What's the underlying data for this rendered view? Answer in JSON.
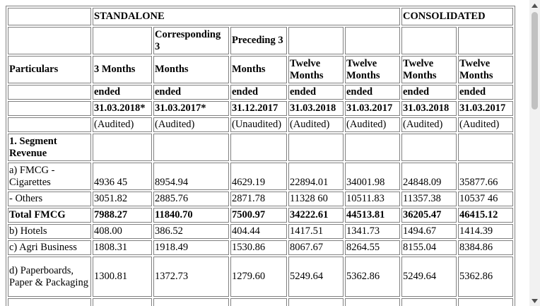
{
  "groups": {
    "standalone": "STANDALONE",
    "consolidated": "CONSOLIDATED"
  },
  "header": {
    "particulars": "Particulars",
    "row2": [
      "",
      "Corresponding 3",
      "Preceding 3",
      "",
      "",
      "",
      ""
    ],
    "row3": [
      "3 Months",
      "Months",
      "Months",
      "Twelve Months",
      "Twelve Months",
      "Twelve Months",
      "Twelve Months"
    ],
    "row4": [
      "ended",
      "ended",
      "ended",
      "ended",
      "ended",
      "ended",
      "ended"
    ],
    "row5": [
      "31.03.2018*",
      "31.03.2017*",
      "31.12.2017",
      "31.03.2018",
      "31.03.2017",
      "31.03.2018",
      "31.03.2017"
    ],
    "row6": [
      "(Audited)",
      "(Audited)",
      "(Unaudited)",
      "(Audited)",
      "(Audited)",
      "(Audited)",
      "(Audited)"
    ]
  },
  "rows": [
    {
      "label": "1. Segment Revenue",
      "values": [
        "",
        "",
        "",
        "",
        "",
        "",
        ""
      ]
    },
    {
      "label": "a) FMCG - Cigarettes",
      "values": [
        "4936 45",
        "8954.94",
        "4629.19",
        "22894.01",
        "34001.98",
        "24848.09",
        "35877.66"
      ]
    },
    {
      "label": "- Others",
      "values": [
        "3051.82",
        "2885.76",
        "2871.78",
        "11328 60",
        "10511.83",
        "11357.38",
        "10537 46"
      ]
    },
    {
      "label": "Total FMCG",
      "values": [
        "7988.27",
        "11840.70",
        "7500.97",
        "34222.61",
        "44513.81",
        "36205.47",
        "46415.12"
      ]
    },
    {
      "label": "b) Hotels",
      "values": [
        "408.00",
        "386.52",
        "404.44",
        "1417.51",
        "1341.73",
        "1494.67",
        "1414.39"
      ]
    },
    {
      "label": "c) Agri Business",
      "values": [
        "1808.31",
        "1918.49",
        "1530.86",
        "8067.67",
        "8264.55",
        "8155.04",
        "8384.86"
      ]
    },
    {
      "label": "d) Paperboards, Paper & Packaging",
      "values": [
        "1300.81",
        "1372.73",
        "1279.60",
        "5249.64",
        "5362.86",
        "5249.64",
        "5362.86"
      ]
    }
  ]
}
